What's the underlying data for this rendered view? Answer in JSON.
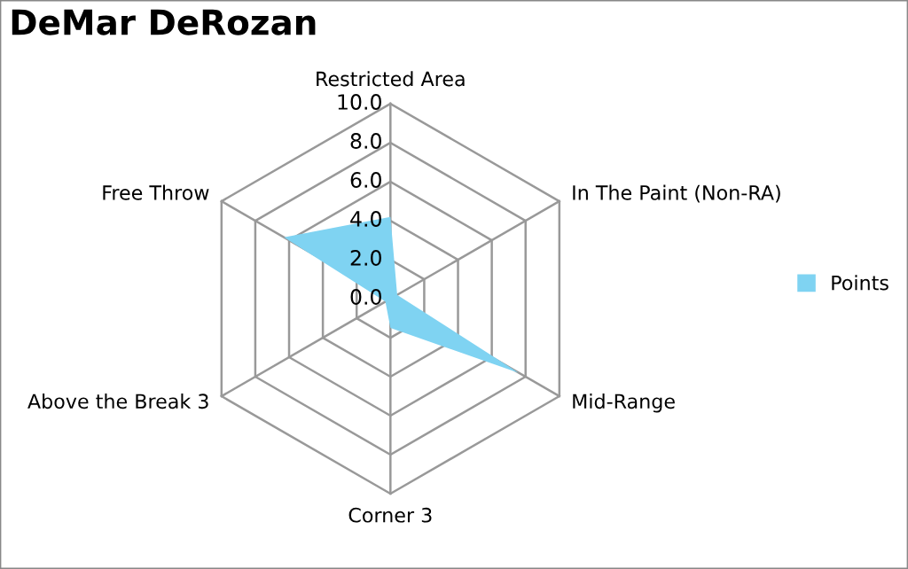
{
  "chart_data": {
    "type": "radar",
    "title": "DeMar DeRozan",
    "categories": [
      "Restricted Area",
      "In The Paint (Non-RA)",
      "Mid-Range",
      "Corner 3",
      "Above the Break 3",
      "Free Throw"
    ],
    "series": [
      {
        "name": "Points",
        "color": "#7fd3f2",
        "values": [
          4.2,
          0.4,
          7.6,
          1.5,
          0.3,
          6.3
        ]
      }
    ],
    "ylim": [
      0,
      10
    ],
    "yticks": [
      {
        "value": 0,
        "label": "0.0"
      },
      {
        "value": 2,
        "label": "2.0"
      },
      {
        "value": 4,
        "label": "4.0"
      },
      {
        "value": 6,
        "label": "6.0"
      },
      {
        "value": 8,
        "label": "8.0"
      },
      {
        "value": 10,
        "label": "10.0"
      }
    ],
    "grid": true,
    "legend": "right"
  }
}
